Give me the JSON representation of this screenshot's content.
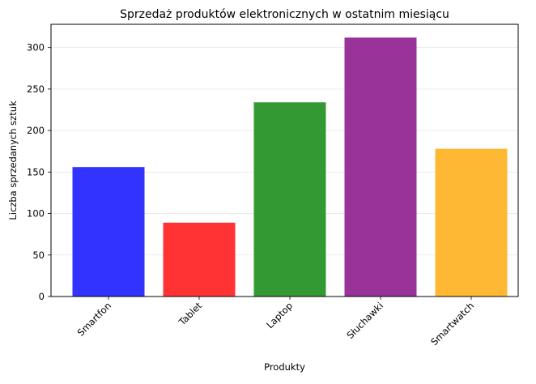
{
  "chart_data": {
    "type": "bar",
    "title": "Sprzedaż produktów elektronicznych w ostatnim miesiącu",
    "xlabel": "Produkty",
    "ylabel": "Liczba sprzedanych sztuk",
    "categories": [
      "Smartfon",
      "Tablet",
      "Laptop",
      "Słuchawki",
      "Smartwatch"
    ],
    "values": [
      156,
      89,
      234,
      312,
      178
    ],
    "colors": [
      "#3333ff",
      "#ff3333",
      "#339933",
      "#993399",
      "#ffb833"
    ],
    "ylim": [
      0,
      328
    ],
    "yticks": [
      0,
      50,
      100,
      150,
      200,
      250,
      300
    ],
    "grid": "horizontal"
  }
}
